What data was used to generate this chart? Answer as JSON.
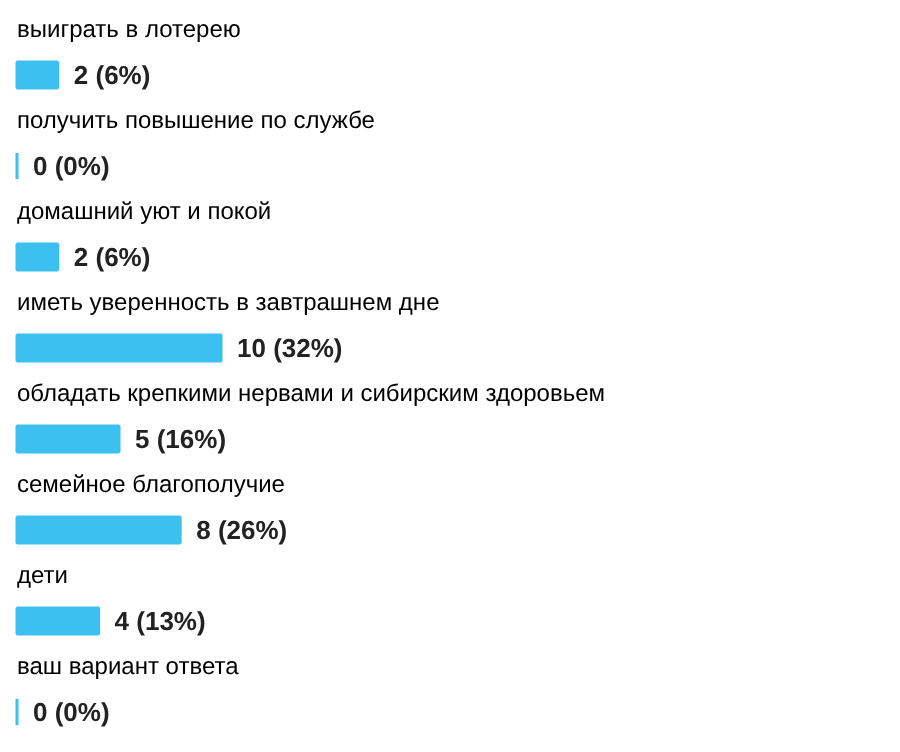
{
  "chart_data": {
    "type": "bar",
    "orientation": "horizontal",
    "categories": [
      "выиграть в лотерею",
      "получить повышение по службе",
      "домашний уют и покой",
      "иметь уверенность в завтрашнем дне",
      "обладать крепкими нервами и сибирским здоровьем",
      "семейное благополучие",
      "дети",
      "ваш вариант ответа"
    ],
    "values": [
      2,
      0,
      2,
      10,
      5,
      8,
      4,
      0
    ],
    "value_labels": [
      "2 (6%)",
      "0 (0%)",
      "2 (6%)",
      "10 (32%)",
      "5 (16%)",
      "8 (26%)",
      "4 (13%)",
      "0 (0%)"
    ],
    "color": "#3cc0f0",
    "grid": false
  }
}
